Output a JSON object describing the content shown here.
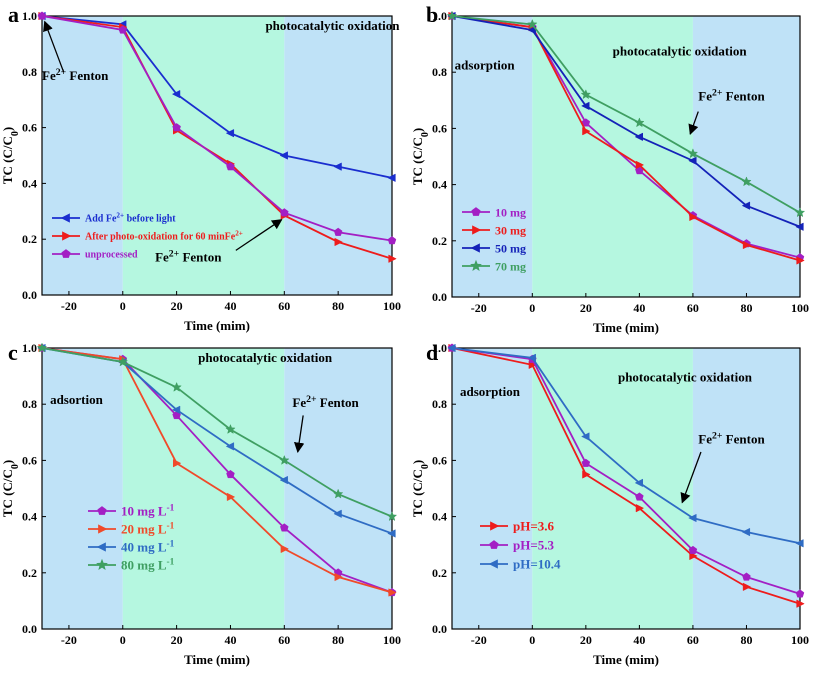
{
  "chart_data": [
    {
      "panel": "a",
      "type": "line",
      "xlabel": "Time (mim)",
      "ylabel": "TC (C/C0)",
      "xlim": [
        -30,
        100
      ],
      "ylim": [
        0,
        1.0
      ],
      "xticks": [
        -20,
        0,
        20,
        40,
        60,
        80,
        100
      ],
      "yticks": [
        0.0,
        0.2,
        0.4,
        0.6,
        0.8,
        1.0
      ],
      "regions": [
        {
          "from": -30,
          "to": 0,
          "color": "#bfe2f7"
        },
        {
          "from": 0,
          "to": 60,
          "color": "#b5f7e0"
        },
        {
          "from": 60,
          "to": 100,
          "color": "#bfe2f7"
        }
      ],
      "legend_position": "lower-left",
      "legend_font_size": 10,
      "series": [
        {
          "name": "Add Fe2+ before light",
          "color": "#1a2ecf",
          "marker": "triangle-left",
          "x": [
            -30,
            0,
            20,
            40,
            60,
            80,
            100
          ],
          "y": [
            1.0,
            0.97,
            0.72,
            0.58,
            0.5,
            0.46,
            0.42
          ]
        },
        {
          "name": "After photo-oxidation for 60 minFe2+",
          "color": "#ee1c1c",
          "marker": "triangle-right",
          "x": [
            -30,
            0,
            20,
            40,
            60,
            80,
            100
          ],
          "y": [
            1.0,
            0.96,
            0.59,
            0.47,
            0.285,
            0.19,
            0.13
          ]
        },
        {
          "name": "unprocessed",
          "color": "#a31fc4",
          "marker": "pentagon",
          "x": [
            -30,
            0,
            20,
            40,
            60,
            80,
            100
          ],
          "y": [
            1.0,
            0.95,
            0.6,
            0.46,
            0.295,
            0.225,
            0.195
          ]
        }
      ],
      "annotations": [
        {
          "text": "photocatalytic oxidation",
          "x": 53,
          "y": 0.95
        },
        {
          "text": "Fe2+ Fenton",
          "x": -30,
          "y": 0.77,
          "arrow_from": [
            -22,
            0.8
          ],
          "arrow_to": [
            -29,
            0.98
          ]
        },
        {
          "text": "Fe2+ Fenton",
          "x": 12,
          "y": 0.12,
          "arrow_from": [
            42,
            0.16
          ],
          "arrow_to": [
            59,
            0.27
          ]
        }
      ]
    },
    {
      "panel": "b",
      "type": "line",
      "xlabel": "Time (mim)",
      "ylabel": "TC (C/C0)",
      "xlim": [
        -30,
        100
      ],
      "ylim": [
        0,
        1.0
      ],
      "xticks": [
        -20,
        0,
        20,
        40,
        60,
        80,
        100
      ],
      "yticks": [
        0.0,
        0.2,
        0.4,
        0.6,
        0.8,
        1.0
      ],
      "regions": [
        {
          "from": -30,
          "to": 0,
          "color": "#bfe2f7"
        },
        {
          "from": 0,
          "to": 60,
          "color": "#b5f7e0"
        },
        {
          "from": 60,
          "to": 100,
          "color": "#bfe2f7"
        }
      ],
      "legend_position": "lower-left",
      "legend_font_size": 12,
      "series": [
        {
          "name": "10 mg",
          "color": "#a31fc4",
          "marker": "pentagon",
          "x": [
            -30,
            0,
            20,
            40,
            60,
            80,
            100
          ],
          "y": [
            1.0,
            0.96,
            0.62,
            0.45,
            0.29,
            0.19,
            0.14
          ]
        },
        {
          "name": "30 mg",
          "color": "#ee1c1c",
          "marker": "triangle-right",
          "x": [
            -30,
            0,
            20,
            40,
            60,
            80,
            100
          ],
          "y": [
            1.0,
            0.96,
            0.59,
            0.47,
            0.285,
            0.185,
            0.13
          ]
        },
        {
          "name": "50 mg",
          "color": "#1422b8",
          "marker": "triangle-left",
          "x": [
            -30,
            0,
            20,
            40,
            60,
            80,
            100
          ],
          "y": [
            1.0,
            0.95,
            0.68,
            0.57,
            0.485,
            0.325,
            0.25
          ]
        },
        {
          "name": "70 mg",
          "color": "#3f9f62",
          "marker": "star",
          "x": [
            -30,
            0,
            20,
            40,
            60,
            80,
            100
          ],
          "y": [
            1.0,
            0.97,
            0.72,
            0.62,
            0.51,
            0.41,
            0.3
          ]
        }
      ],
      "annotations": [
        {
          "text": "adsorption",
          "x": -29,
          "y": 0.81
        },
        {
          "text": "photocatalytic oxidation",
          "x": 30,
          "y": 0.86
        },
        {
          "text": "Fe2+ Fenton",
          "x": 62,
          "y": 0.7,
          "arrow_from": [
            62,
            0.66
          ],
          "arrow_to": [
            59,
            0.58
          ]
        }
      ]
    },
    {
      "panel": "c",
      "type": "line",
      "xlabel": "Time (mim)",
      "ylabel": "TC (C/C0)",
      "xlim": [
        -30,
        100
      ],
      "ylim": [
        0,
        1.0
      ],
      "xticks": [
        -20,
        0,
        20,
        40,
        60,
        80,
        100
      ],
      "yticks": [
        0.0,
        0.2,
        0.4,
        0.6,
        0.8,
        1.0
      ],
      "regions": [
        {
          "from": -30,
          "to": 0,
          "color": "#bfe2f7"
        },
        {
          "from": 0,
          "to": 60,
          "color": "#b5f7e0"
        },
        {
          "from": 60,
          "to": 100,
          "color": "#bfe2f7"
        }
      ],
      "legend_position": "lower-left",
      "legend_font_size": 13,
      "series": [
        {
          "name": "10 mg L-1",
          "color": "#a31fc4",
          "marker": "pentagon",
          "x": [
            -30,
            0,
            20,
            40,
            60,
            80,
            100
          ],
          "y": [
            1.0,
            0.96,
            0.76,
            0.55,
            0.36,
            0.2,
            0.13
          ]
        },
        {
          "name": "20 mg L-1",
          "color": "#f04a2a",
          "marker": "triangle-right",
          "x": [
            -30,
            0,
            20,
            40,
            60,
            80,
            100
          ],
          "y": [
            1.0,
            0.96,
            0.59,
            0.47,
            0.285,
            0.185,
            0.13
          ]
        },
        {
          "name": "40 mg L-1",
          "color": "#2f6cc4",
          "marker": "triangle-left",
          "x": [
            -30,
            0,
            20,
            40,
            60,
            80,
            100
          ],
          "y": [
            1.0,
            0.95,
            0.78,
            0.65,
            0.53,
            0.41,
            0.34
          ]
        },
        {
          "name": "80 mg L-1",
          "color": "#3f9f62",
          "marker": "star",
          "x": [
            -30,
            0,
            20,
            40,
            60,
            80,
            100
          ],
          "y": [
            1.0,
            0.95,
            0.86,
            0.71,
            0.6,
            0.48,
            0.4
          ]
        }
      ],
      "annotations": [
        {
          "text": "adsortion",
          "x": -27,
          "y": 0.8
        },
        {
          "text": "photocatalytic oxidation",
          "x": 28,
          "y": 0.95
        },
        {
          "text": "Fe2+ Fenton",
          "x": 63,
          "y": 0.79,
          "arrow_from": [
            67,
            0.76
          ],
          "arrow_to": [
            65,
            0.63
          ]
        }
      ]
    },
    {
      "panel": "d",
      "type": "line",
      "xlabel": "Time (mim)",
      "ylabel": "TC (C/C0)",
      "xlim": [
        -30,
        100
      ],
      "ylim": [
        0,
        1.0
      ],
      "xticks": [
        -20,
        0,
        20,
        40,
        60,
        80,
        100
      ],
      "yticks": [
        0.0,
        0.2,
        0.4,
        0.6,
        0.8,
        1.0
      ],
      "regions": [
        {
          "from": -30,
          "to": 0,
          "color": "#bfe2f7"
        },
        {
          "from": 0,
          "to": 60,
          "color": "#b5f7e0"
        },
        {
          "from": 60,
          "to": 100,
          "color": "#bfe2f7"
        }
      ],
      "legend_position": "lower-left",
      "legend_font_size": 13,
      "series": [
        {
          "name": "pH=3.6",
          "color": "#ee1c1c",
          "marker": "triangle-right",
          "x": [
            -30,
            0,
            20,
            40,
            60,
            80,
            100
          ],
          "y": [
            1.0,
            0.94,
            0.55,
            0.43,
            0.26,
            0.15,
            0.09
          ]
        },
        {
          "name": "pH=5.3",
          "color": "#a31fc4",
          "marker": "pentagon",
          "x": [
            -30,
            0,
            20,
            40,
            60,
            80,
            100
          ],
          "y": [
            1.0,
            0.96,
            0.59,
            0.47,
            0.28,
            0.185,
            0.125
          ]
        },
        {
          "name": "pH=10.4",
          "color": "#2f6cc4",
          "marker": "triangle-left",
          "x": [
            -30,
            0,
            20,
            40,
            60,
            80,
            100
          ],
          "y": [
            1.0,
            0.965,
            0.685,
            0.52,
            0.395,
            0.345,
            0.305
          ]
        }
      ],
      "annotations": [
        {
          "text": "adsorption",
          "x": -27,
          "y": 0.83
        },
        {
          "text": "photocatalytic oxidation",
          "x": 32,
          "y": 0.88
        },
        {
          "text": "Fe2+ Fenton",
          "x": 62,
          "y": 0.66,
          "arrow_from": [
            63,
            0.63
          ],
          "arrow_to": [
            56,
            0.45
          ]
        }
      ]
    }
  ]
}
